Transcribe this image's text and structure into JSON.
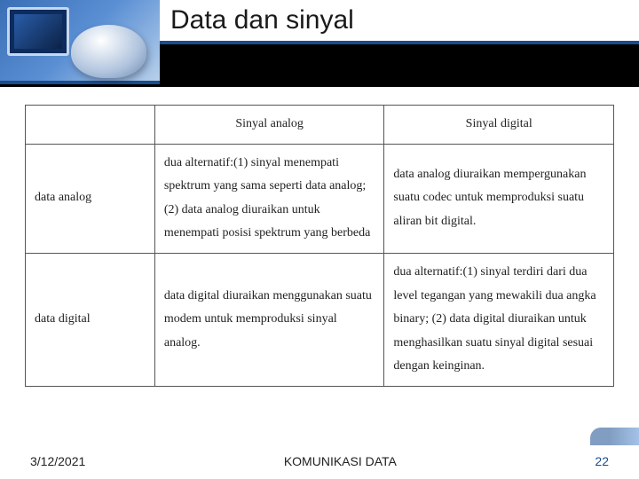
{
  "slide": {
    "title": "Data dan sinyal",
    "accent_color": "#1a4d8f",
    "band_color": "#000000"
  },
  "table": {
    "font_family": "Times New Roman",
    "cell_fontsize": 14,
    "border_color": "#555555",
    "columns": [
      "",
      "Sinyal analog",
      "Sinyal digital"
    ],
    "rows": [
      {
        "label": "data analog",
        "analog": "dua alternatif:(1) sinyal menempati spektrum yang sama seperti data analog; (2) data analog diuraikan untuk menempati posisi spektrum yang berbeda",
        "digital": "data analog diuraikan mempergunakan suatu codec untuk memproduksi suatu aliran bit digital."
      },
      {
        "label": "data digital",
        "analog": "data digital diuraikan menggunakan suatu modem untuk memproduksi sinyal analog.",
        "digital": "dua alternatif:(1) sinyal terdiri dari dua level tegangan yang mewakili dua angka binary; (2) data digital diuraikan untuk menghasilkan suatu sinyal digital sesuai dengan keinginan."
      }
    ]
  },
  "footer": {
    "date": "3/12/2021",
    "course": "KOMUNIKASI DATA",
    "page": "22"
  }
}
